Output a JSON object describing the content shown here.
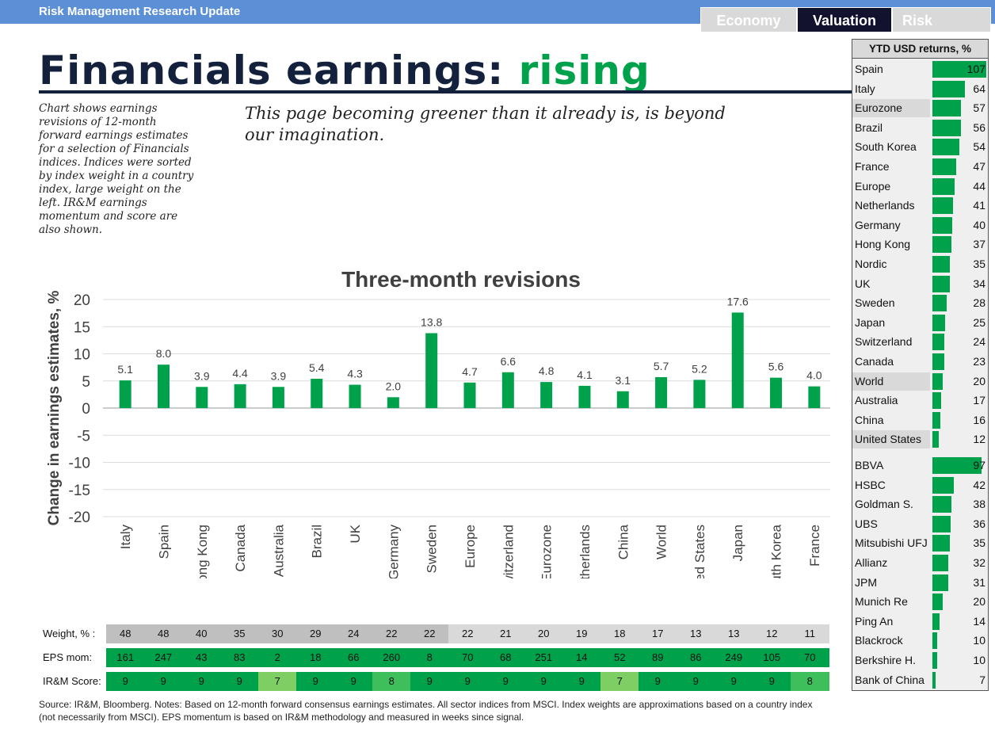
{
  "header": {
    "title": "Risk Management Research Update",
    "tabs": [
      {
        "label": "Economy"
      },
      {
        "label": "Valuation"
      },
      {
        "label": "Risk"
      }
    ]
  },
  "headline": {
    "main": "Financials earnings: ",
    "accent": "rising"
  },
  "description": "Chart shows earnings revisions of 12-month forward earnings estimates for a selection of Financials indices. Indices were sorted by index weight in a country index, large weight on the left. IR&M earnings momentum and score are also shown.",
  "quote": "This page becoming greener than it already is, is beyond our imagination.",
  "chart_data": {
    "type": "bar",
    "title": "Three-month revisions",
    "ylabel": "Change in earnings estimates, %",
    "xlabel": "",
    "ylim": [
      -20,
      20
    ],
    "yticks": [
      20,
      15,
      10,
      5,
      0,
      -5,
      -10,
      -15,
      -20
    ],
    "grid": true,
    "categories": [
      "Italy",
      "Spain",
      "Hong Kong",
      "Canada",
      "Australia",
      "Brazil",
      "UK",
      "Germany",
      "Sweden",
      "Europe",
      "Switzerland",
      "Eurozone",
      "Netherlands",
      "China",
      "World",
      "United States",
      "Japan",
      "South Korea",
      "France"
    ],
    "values": [
      5.1,
      8.0,
      3.9,
      4.4,
      3.9,
      5.4,
      4.3,
      2.0,
      13.8,
      4.7,
      6.6,
      4.8,
      4.1,
      3.1,
      5.7,
      5.2,
      17.6,
      5.6,
      4.0
    ],
    "value_labels": [
      "5.1",
      "8.0",
      "3.9",
      "4.4",
      "3.9",
      "5.4",
      "4.3",
      "2.0",
      "13.8",
      "4.7",
      "6.6",
      "4.8",
      "4.1",
      "3.1",
      "5.7",
      "5.2",
      "17.6",
      "5.6",
      "4.0"
    ],
    "bar_color": "#00a14b"
  },
  "table": {
    "rows": [
      {
        "label": "Weight, % :",
        "values": [
          48,
          48,
          40,
          35,
          30,
          29,
          24,
          22,
          22,
          22,
          21,
          20,
          19,
          18,
          17,
          13,
          13,
          12,
          11
        ]
      },
      {
        "label": "EPS mom:",
        "values": [
          161,
          247,
          43,
          83,
          2,
          18,
          66,
          260,
          8,
          70,
          68,
          251,
          14,
          52,
          89,
          86,
          249,
          105,
          70
        ]
      },
      {
        "label": "IR&M Score:",
        "values": [
          9,
          9,
          9,
          9,
          7,
          9,
          9,
          8,
          9,
          9,
          9,
          9,
          9,
          7,
          9,
          9,
          9,
          9,
          8
        ]
      }
    ],
    "colors": {
      "weight_dark": "#bfbfbf",
      "weight_light": "#d9d9d9",
      "green": "#00a14b",
      "score7": "#7dcf63",
      "score8": "#3fbf5c"
    }
  },
  "source": "Source: IR&M, Bloomberg. Notes: Based on 12-month forward consensus earnings estimates. All sector indices from MSCI. Index weights are approximations based on a country index (not necessarily from MSCI). EPS momentum is based on IR&M methodology and measured in weeks since signal.",
  "ytd_panel": {
    "title": "YTD USD returns, %",
    "countries": [
      {
        "name": "Spain",
        "value": 107
      },
      {
        "name": "Italy",
        "value": 64
      },
      {
        "name": "Eurozone",
        "value": 57,
        "highlight": true
      },
      {
        "name": "Brazil",
        "value": 56
      },
      {
        "name": "South Korea",
        "value": 54
      },
      {
        "name": "France",
        "value": 47
      },
      {
        "name": "Europe",
        "value": 44
      },
      {
        "name": "Netherlands",
        "value": 41
      },
      {
        "name": "Germany",
        "value": 40
      },
      {
        "name": "Hong Kong",
        "value": 37
      },
      {
        "name": "Nordic",
        "value": 35
      },
      {
        "name": "UK",
        "value": 34
      },
      {
        "name": "Sweden",
        "value": 28
      },
      {
        "name": "Japan",
        "value": 25
      },
      {
        "name": "Switzerland",
        "value": 24
      },
      {
        "name": "Canada",
        "value": 23
      },
      {
        "name": "World",
        "value": 20,
        "highlight": true
      },
      {
        "name": "Australia",
        "value": 17
      },
      {
        "name": "China",
        "value": 16
      },
      {
        "name": "United States",
        "value": 12,
        "highlight": true
      }
    ],
    "companies": [
      {
        "name": "BBVA",
        "value": 97
      },
      {
        "name": "HSBC",
        "value": 42
      },
      {
        "name": "Goldman S.",
        "value": 38
      },
      {
        "name": "UBS",
        "value": 36
      },
      {
        "name": "Mitsubishi UFJ",
        "value": 35
      },
      {
        "name": "Allianz",
        "value": 32
      },
      {
        "name": "JPM",
        "value": 31
      },
      {
        "name": "Munich Re",
        "value": 20
      },
      {
        "name": "Ping An",
        "value": 14
      },
      {
        "name": "Blackrock",
        "value": 10
      },
      {
        "name": "Berkshire H.",
        "value": 10
      },
      {
        "name": "Bank of China",
        "value": 7
      }
    ]
  }
}
